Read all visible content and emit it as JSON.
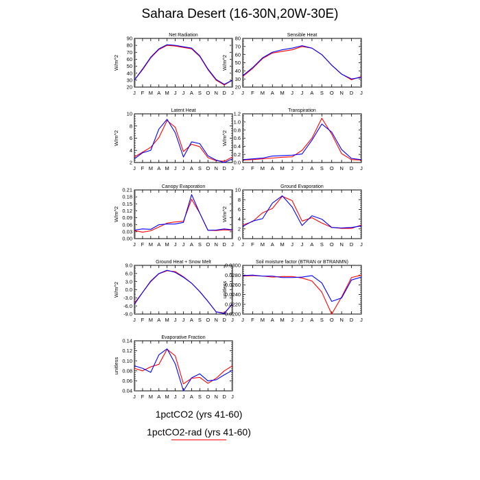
{
  "title": "Sahara Desert (16-30N,20W-30E)",
  "legend": {
    "series_1": "1pctCO2 (yrs 41-60)",
    "series_2": "1pctCO2-rad (yrs 41-60)",
    "series_2_color": "#ff0000",
    "series_1_color": "#0000ff"
  },
  "months": [
    "J",
    "F",
    "M",
    "A",
    "M",
    "J",
    "J",
    "A",
    "S",
    "O",
    "N",
    "D",
    "J"
  ],
  "chart_data": [
    {
      "type": "line",
      "title": "Net Radiation",
      "ylabel": "W/m^2",
      "ylim": [
        20,
        90
      ],
      "yticks": [
        20,
        30,
        40,
        50,
        60,
        70,
        80,
        90
      ],
      "ytick_labels": [
        "20",
        "30",
        "40",
        "50",
        "60",
        "70",
        "80",
        "90"
      ],
      "series": [
        {
          "color": "#ff0000",
          "values": [
            30,
            45,
            62,
            74,
            80,
            79,
            77,
            75,
            64,
            45,
            30,
            23,
            30
          ]
        },
        {
          "color": "#0000ff",
          "values": [
            30,
            46,
            63,
            75,
            81,
            80,
            78,
            76,
            65,
            46,
            31,
            24,
            30
          ]
        }
      ]
    },
    {
      "type": "line",
      "title": "Sensible Heat",
      "ylabel": "W/m^2",
      "ylim": [
        20,
        80
      ],
      "yticks": [
        20,
        30,
        40,
        50,
        60,
        70,
        80
      ],
      "ytick_labels": [
        "20",
        "30",
        "40",
        "50",
        "60",
        "70",
        "80"
      ],
      "series": [
        {
          "color": "#ff0000",
          "values": [
            33,
            43,
            55,
            62,
            64,
            66,
            70,
            68,
            60,
            47,
            36,
            29,
            33
          ]
        },
        {
          "color": "#0000ff",
          "values": [
            34,
            44,
            56,
            63,
            66,
            68,
            71,
            68,
            60,
            47,
            36,
            30,
            32
          ]
        }
      ]
    },
    {
      "type": "line",
      "title": "Latent Heat",
      "ylabel": "W/m^2",
      "ylim": [
        2,
        10
      ],
      "yticks": [
        2,
        4,
        6,
        8,
        10
      ],
      "ytick_labels": [
        "2",
        "4",
        "6",
        "8",
        "10"
      ],
      "series": [
        {
          "color": "#ff0000",
          "values": [
            2.9,
            3.7,
            4.5,
            6.1,
            8.9,
            7.8,
            3.8,
            5.0,
            4.6,
            2.8,
            2.3,
            2.2,
            2.9
          ]
        },
        {
          "color": "#0000ff",
          "values": [
            2.6,
            3.6,
            4.0,
            7.5,
            9.1,
            6.9,
            2.9,
            5.4,
            5.1,
            3.1,
            2.4,
            2.0,
            2.6
          ]
        }
      ]
    },
    {
      "type": "line",
      "title": "Transpiration",
      "ylabel": "W/m^2",
      "ylim": [
        0,
        1.2
      ],
      "yticks": [
        0,
        0.2,
        0.4,
        0.6,
        0.8,
        1.0,
        1.2
      ],
      "ytick_labels": [
        "0.0",
        "0.2",
        "0.4",
        "0.6",
        "0.8",
        "1.0",
        "1.2"
      ],
      "series": [
        {
          "color": "#ff0000",
          "values": [
            0.06,
            0.07,
            0.09,
            0.11,
            0.13,
            0.14,
            0.3,
            0.6,
            1.09,
            0.7,
            0.22,
            0.07,
            0.06
          ]
        },
        {
          "color": "#0000ff",
          "values": [
            0.07,
            0.09,
            0.11,
            0.16,
            0.17,
            0.18,
            0.21,
            0.55,
            0.95,
            0.75,
            0.32,
            0.1,
            0.07
          ]
        }
      ]
    },
    {
      "type": "line",
      "title": "Canopy Evaporation",
      "ylabel": "W/m^2",
      "ylim": [
        0,
        0.21
      ],
      "yticks": [
        0,
        0.03,
        0.06,
        0.09,
        0.12,
        0.15,
        0.18,
        0.21
      ],
      "ytick_labels": [
        "0.00",
        "0.03",
        "0.06",
        "0.09",
        "0.12",
        "0.15",
        "0.18",
        "0.21"
      ],
      "series": [
        {
          "color": "#ff0000",
          "values": [
            0.035,
            0.028,
            0.034,
            0.05,
            0.067,
            0.072,
            0.075,
            0.17,
            0.11,
            0.036,
            0.035,
            0.038,
            0.036
          ]
        },
        {
          "color": "#0000ff",
          "values": [
            0.037,
            0.042,
            0.04,
            0.06,
            0.063,
            0.063,
            0.07,
            0.19,
            0.11,
            0.036,
            0.037,
            0.042,
            0.038
          ]
        }
      ]
    },
    {
      "type": "line",
      "title": "Ground Evaporation",
      "ylabel": "W/m^2",
      "ylim": [
        0,
        10
      ],
      "yticks": [
        0,
        2,
        4,
        6,
        8,
        10
      ],
      "ytick_labels": [
        "0",
        "2",
        "4",
        "6",
        "8",
        "10"
      ],
      "series": [
        {
          "color": "#ff0000",
          "values": [
            2.8,
            3.5,
            5.3,
            6.2,
            8.7,
            7.8,
            3.6,
            4.3,
            3.2,
            2.3,
            2.1,
            2.1,
            2.8
          ]
        },
        {
          "color": "#0000ff",
          "values": [
            2.5,
            3.6,
            4.1,
            7.3,
            8.8,
            6.5,
            2.7,
            4.7,
            4.0,
            2.3,
            2.2,
            2.3,
            2.6
          ]
        }
      ]
    },
    {
      "type": "line",
      "title": "Ground Heat + Snow Melt",
      "ylabel": "W/m^2",
      "ylim": [
        -9,
        9
      ],
      "yticks": [
        -9,
        -6,
        -3,
        0,
        3,
        6,
        9
      ],
      "ytick_labels": [
        "-9.0",
        "-6.0",
        "-3.0",
        "0.0",
        "3.0",
        "6.0",
        "9.0"
      ],
      "series": [
        {
          "color": "#ff0000",
          "values": [
            -5.0,
            -1.0,
            3.0,
            5.9,
            7.0,
            6.7,
            4.8,
            2.4,
            -0.7,
            -4.3,
            -8.2,
            -8.6,
            -5.4
          ]
        },
        {
          "color": "#0000ff",
          "values": [
            -5.4,
            -1.0,
            3.2,
            6.0,
            7.2,
            6.4,
            4.6,
            2.4,
            -0.7,
            -4.3,
            -8.2,
            -8.8,
            -5.2
          ]
        }
      ]
    },
    {
      "type": "line",
      "title": "Soil moisture factor (BTRAN or BTRANMN)",
      "ylabel": "unitless",
      "ylim": [
        0.02,
        0.03
      ],
      "yticks": [
        0.02,
        0.022,
        0.024,
        0.026,
        0.028,
        0.03
      ],
      "ytick_labels": [
        "0.0200",
        "0.0220",
        "0.0240",
        "0.0260",
        "0.0280",
        "0.0300"
      ],
      "series": [
        {
          "color": "#ff0000",
          "values": [
            0.0278,
            0.0279,
            0.0278,
            0.0276,
            0.0277,
            0.0277,
            0.0274,
            0.0268,
            0.0245,
            0.02,
            0.0235,
            0.0275,
            0.028
          ]
        },
        {
          "color": "#0000ff",
          "values": [
            0.0279,
            0.028,
            0.0278,
            0.0278,
            0.0275,
            0.0275,
            0.0276,
            0.0279,
            0.0264,
            0.0226,
            0.0233,
            0.027,
            0.0276
          ]
        }
      ]
    },
    {
      "type": "line",
      "title": "Evaporative Fraction",
      "ylabel": "unitless",
      "ylim": [
        0.04,
        0.14
      ],
      "yticks": [
        0.04,
        0.06,
        0.08,
        0.1,
        0.12,
        0.14
      ],
      "ytick_labels": [
        "0.04",
        "0.06",
        "0.08",
        "0.10",
        "0.12",
        "0.14"
      ],
      "series": [
        {
          "color": "#ff0000",
          "values": [
            0.085,
            0.08,
            0.088,
            0.093,
            0.123,
            0.11,
            0.054,
            0.065,
            0.067,
            0.055,
            0.065,
            0.08,
            0.09
          ]
        },
        {
          "color": "#0000ff",
          "values": [
            0.09,
            0.085,
            0.077,
            0.112,
            0.124,
            0.094,
            0.04,
            0.066,
            0.074,
            0.06,
            0.062,
            0.072,
            0.081
          ]
        }
      ]
    }
  ]
}
